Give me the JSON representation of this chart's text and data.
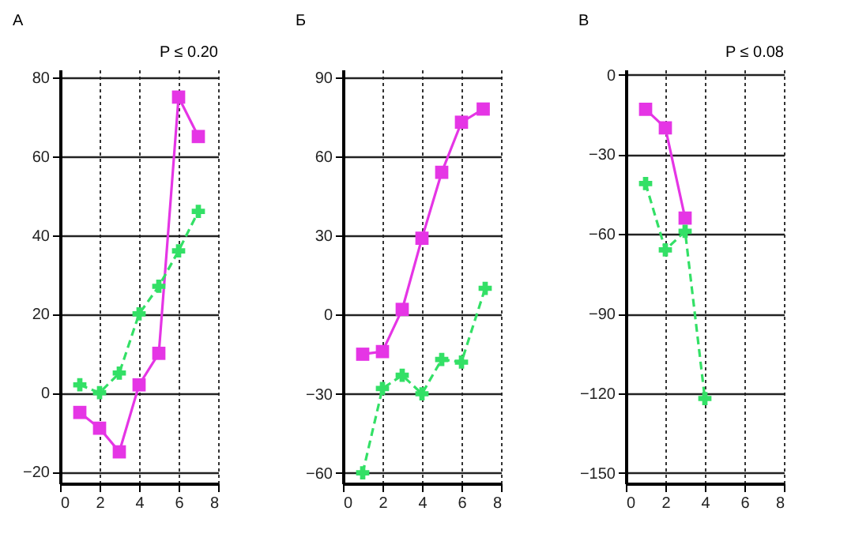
{
  "chart_data": [
    {
      "type": "line",
      "title": "А",
      "annotations": [
        "P ≤ 0.20"
      ],
      "xlim": [
        0,
        8
      ],
      "xticks": [
        0,
        2,
        4,
        6,
        8
      ],
      "ylim": [
        -23,
        82
      ],
      "yticks": [
        -20,
        0,
        20,
        40,
        60,
        80
      ],
      "grid": true,
      "x": [
        1,
        2,
        3,
        4,
        5,
        6,
        7
      ],
      "series": [
        {
          "color": "#e535e5",
          "marker": "square",
          "line_style": "solid",
          "values": [
            -5,
            -9,
            -15,
            2,
            10,
            75,
            65
          ]
        },
        {
          "color": "#33e066",
          "marker": "cross",
          "line_style": "dashed",
          "values": [
            2,
            0,
            5,
            20,
            27,
            36,
            46
          ]
        }
      ]
    },
    {
      "type": "line",
      "title": "Б",
      "xlim": [
        0,
        8
      ],
      "xticks": [
        0,
        2,
        4,
        6,
        8
      ],
      "ylim": [
        -64,
        93
      ],
      "yticks": [
        -60,
        -30,
        0,
        30,
        60,
        90
      ],
      "grid": true,
      "series": [
        {
          "color": "#e535e5",
          "marker": "square",
          "line_style": "solid",
          "x": [
            1,
            2,
            3,
            4,
            5,
            6,
            7.1
          ],
          "values": [
            -15,
            -14,
            2,
            29,
            54,
            73,
            78
          ]
        },
        {
          "color": "#33e066",
          "marker": "cross",
          "line_style": "dashed",
          "x": [
            1,
            2,
            3,
            4,
            5,
            6,
            7.2
          ],
          "values": [
            -60,
            -28,
            -23,
            -30,
            -17,
            -18,
            10
          ]
        }
      ]
    },
    {
      "type": "line",
      "title": "В",
      "annotations": [
        "P ≤ 0.08"
      ],
      "xlim": [
        0,
        8
      ],
      "xticks": [
        0,
        2,
        4,
        6,
        8
      ],
      "ylim": [
        -154,
        2
      ],
      "yticks": [
        -150,
        -120,
        -90,
        -60,
        -30,
        0
      ],
      "grid": true,
      "series": [
        {
          "color": "#e535e5",
          "marker": "square",
          "line_style": "solid",
          "x": [
            1,
            2,
            3
          ],
          "values": [
            -13,
            -20,
            -54
          ]
        },
        {
          "color": "#33e066",
          "marker": "cross",
          "line_style": "dashed",
          "x": [
            1,
            2,
            3,
            4
          ],
          "values": [
            -41,
            -66,
            -59,
            -122
          ]
        }
      ]
    }
  ]
}
